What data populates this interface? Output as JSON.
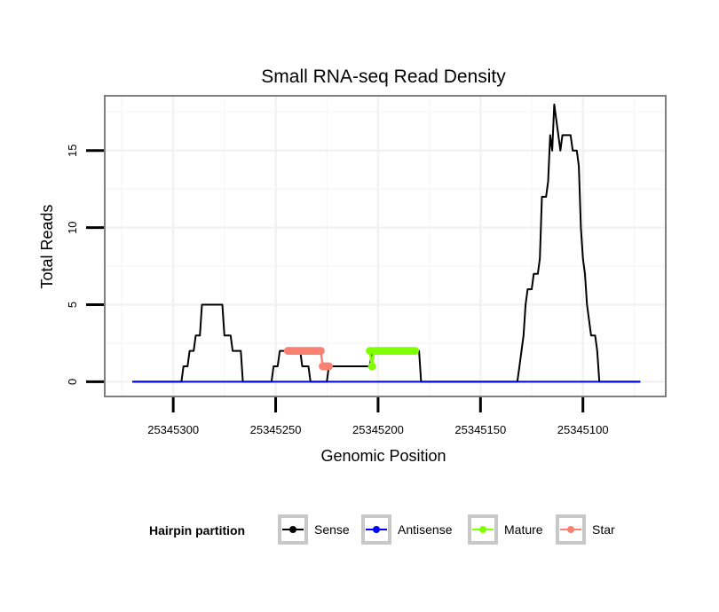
{
  "chart_data": {
    "type": "line",
    "title": "Small RNA-seq Read Density",
    "xlabel": "Genomic Position",
    "ylabel": "Total Reads",
    "xlim": [
      25345333,
      25345060
    ],
    "ylim": [
      -0.9,
      18.5
    ],
    "x_ticks": [
      25345300,
      25345250,
      25345200,
      25345150,
      25345100
    ],
    "y_ticks": [
      0,
      5,
      10,
      15
    ],
    "grid": true,
    "legend": {
      "title": "Hairpin partition",
      "position": "bottom",
      "entries": [
        {
          "label": "Sense",
          "color": "#000000"
        },
        {
          "label": "Antisense",
          "color": "#0000ff"
        },
        {
          "label": "Mature",
          "color": "#7fff00"
        },
        {
          "label": "Star",
          "color": "#fa8072"
        }
      ]
    },
    "series": [
      {
        "name": "Sense",
        "color": "#000000",
        "points": [
          [
            25345320,
            0
          ],
          [
            25345296,
            0
          ],
          [
            25345295,
            1
          ],
          [
            25345293,
            1
          ],
          [
            25345292,
            2
          ],
          [
            25345290,
            2
          ],
          [
            25345289,
            3
          ],
          [
            25345287,
            3
          ],
          [
            25345286,
            5
          ],
          [
            25345276,
            5
          ],
          [
            25345275,
            3
          ],
          [
            25345272,
            3
          ],
          [
            25345271,
            2
          ],
          [
            25345267,
            2
          ],
          [
            25345266,
            0
          ],
          [
            25345252,
            0
          ],
          [
            25345251,
            1
          ],
          [
            25345249,
            1
          ],
          [
            25345248,
            2
          ],
          [
            25345238,
            2
          ],
          [
            25345237,
            1
          ],
          [
            25345234,
            1
          ],
          [
            25345233,
            0
          ],
          [
            25345225,
            0
          ],
          [
            25345224,
            1
          ],
          [
            25345204,
            1
          ],
          [
            25345203,
            2
          ],
          [
            25345180,
            2
          ],
          [
            25345179,
            0
          ],
          [
            25345132,
            0
          ],
          [
            25345131,
            1
          ],
          [
            25345130,
            2
          ],
          [
            25345129,
            3
          ],
          [
            25345128,
            5
          ],
          [
            25345127,
            6
          ],
          [
            25345125,
            6
          ],
          [
            25345124,
            7
          ],
          [
            25345122,
            7
          ],
          [
            25345121,
            8
          ],
          [
            25345120,
            12
          ],
          [
            25345118,
            12
          ],
          [
            25345117,
            13
          ],
          [
            25345116,
            16
          ],
          [
            25345115,
            15
          ],
          [
            25345114,
            18
          ],
          [
            25345113,
            17
          ],
          [
            25345112,
            16
          ],
          [
            25345111,
            15
          ],
          [
            25345110,
            16
          ],
          [
            25345106,
            16
          ],
          [
            25345105,
            15
          ],
          [
            25345103,
            15
          ],
          [
            25345102,
            14
          ],
          [
            25345101,
            10
          ],
          [
            25345100,
            8
          ],
          [
            25345099,
            7
          ],
          [
            25345098,
            5
          ],
          [
            25345097,
            4
          ],
          [
            25345096,
            3
          ],
          [
            25345094,
            3
          ],
          [
            25345093,
            2
          ],
          [
            25345092,
            0
          ],
          [
            25345072,
            0
          ]
        ]
      },
      {
        "name": "Antisense",
        "color": "#0000ff",
        "points": [
          [
            25345320,
            0
          ],
          [
            25345072,
            0
          ]
        ]
      },
      {
        "name": "Star",
        "color": "#fa8072",
        "points": [
          [
            25345244,
            2
          ],
          [
            25345243,
            2
          ],
          [
            25345242,
            2
          ],
          [
            25345241,
            2
          ],
          [
            25345240,
            2
          ],
          [
            25345239,
            2
          ],
          [
            25345238,
            2
          ],
          [
            25345237,
            2
          ],
          [
            25345236,
            2
          ],
          [
            25345235,
            2
          ],
          [
            25345234,
            2
          ],
          [
            25345233,
            2
          ],
          [
            25345232,
            2
          ],
          [
            25345231,
            2
          ],
          [
            25345230,
            2
          ],
          [
            25345229,
            2
          ],
          [
            25345228,
            2
          ],
          [
            25345227,
            1
          ],
          [
            25345226,
            1
          ],
          [
            25345225,
            1
          ],
          [
            25345224,
            1
          ]
        ]
      },
      {
        "name": "Mature",
        "color": "#7fff00",
        "points": [
          [
            25345204,
            2
          ],
          [
            25345203,
            1
          ],
          [
            25345202,
            2
          ],
          [
            25345201,
            2
          ],
          [
            25345200,
            2
          ],
          [
            25345199,
            2
          ],
          [
            25345198,
            2
          ],
          [
            25345197,
            2
          ],
          [
            25345196,
            2
          ],
          [
            25345195,
            2
          ],
          [
            25345194,
            2
          ],
          [
            25345193,
            2
          ],
          [
            25345192,
            2
          ],
          [
            25345191,
            2
          ],
          [
            25345190,
            2
          ],
          [
            25345189,
            2
          ],
          [
            25345188,
            2
          ],
          [
            25345187,
            2
          ],
          [
            25345186,
            2
          ],
          [
            25345185,
            2
          ],
          [
            25345184,
            2
          ],
          [
            25345183,
            2
          ],
          [
            25345182,
            2
          ]
        ]
      }
    ]
  }
}
